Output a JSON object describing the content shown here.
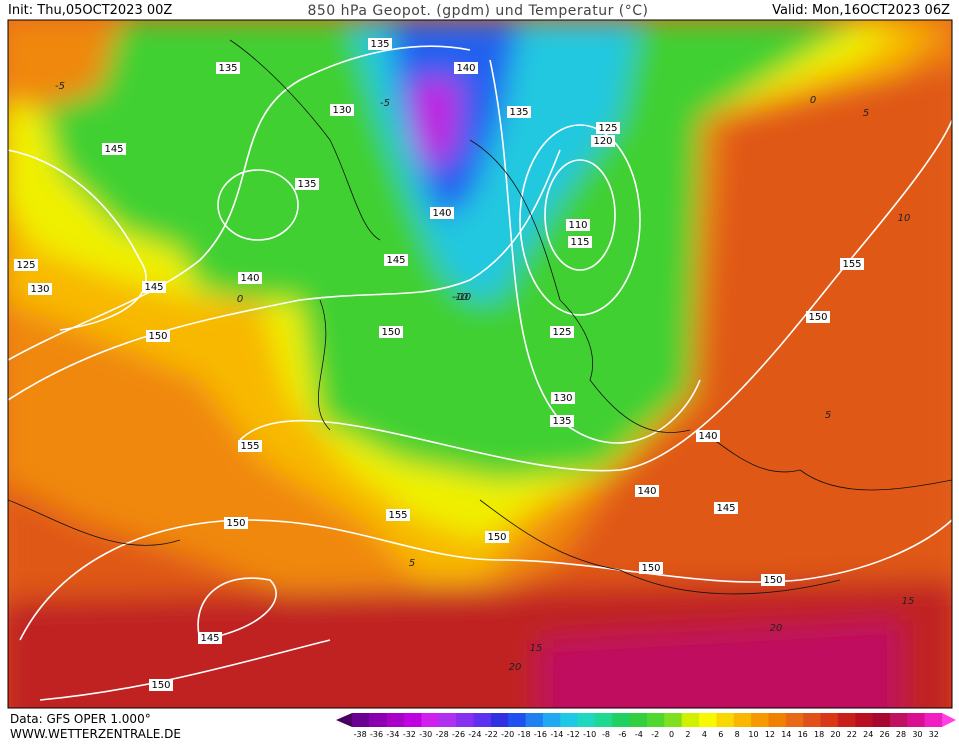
{
  "header": {
    "init": "Init: Thu,05OCT2023 00Z",
    "title": "850 hPa Geopot. (gpdm) und Temperatur (°C)",
    "valid": "Valid: Mon,16OCT2023 06Z"
  },
  "contour_labels": [
    135,
    135,
    140,
    130,
    135,
    145,
    125,
    120,
    135,
    140,
    110,
    115,
    125,
    145,
    155,
    140,
    130,
    145,
    150,
    150,
    125,
    150,
    130,
    135,
    140,
    155,
    140,
    145,
    155,
    150,
    150,
    150,
    150,
    145,
    150
  ],
  "isotherm_labels": [
    -5,
    -5,
    0,
    -10,
    0,
    5,
    10,
    -10,
    5,
    5,
    15,
    15,
    20,
    20
  ],
  "colorbar": {
    "labels": [
      -38,
      -36,
      -34,
      -32,
      -30,
      -28,
      -26,
      -24,
      -22,
      -20,
      -18,
      -16,
      -14,
      -12,
      -10,
      -8,
      -6,
      -4,
      -2,
      0,
      2,
      4,
      6,
      8,
      10,
      12,
      14,
      16,
      18,
      20,
      22,
      24,
      26,
      28,
      30,
      32
    ],
    "colors": [
      "#4b0060",
      "#6a0090",
      "#8a00b0",
      "#a800c8",
      "#c000e0",
      "#d020f0",
      "#b030f0",
      "#8830f0",
      "#6030f0",
      "#3030e0",
      "#2050f0",
      "#2080f0",
      "#20a8f0",
      "#20c8e8",
      "#20d8c0",
      "#20d890",
      "#20d060",
      "#30d040",
      "#50d830",
      "#80e020",
      "#d0f000",
      "#f8f800",
      "#f8d800",
      "#f8b800",
      "#f89800",
      "#f08000",
      "#e86818",
      "#e05018",
      "#d83818",
      "#c82018",
      "#b81020",
      "#a80830",
      "#c01060",
      "#d81090",
      "#f020c0",
      "#ff40e0"
    ]
  },
  "footer": {
    "data": "Data: GFS OPER 1.000°",
    "url": "WWW.WETTERZENTRALE.DE"
  }
}
